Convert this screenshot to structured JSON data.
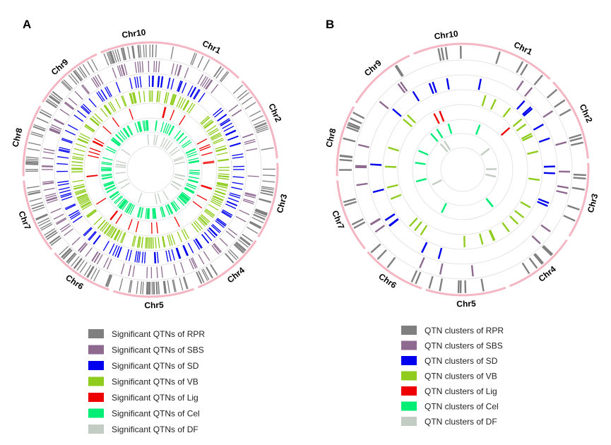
{
  "panels": [
    {
      "label": "A",
      "legend": [
        {
          "text": "Significant QTNs of RPR",
          "color": "#7f7f7f"
        },
        {
          "text": "Significant QTNs of SBS",
          "color": "#8e6a91"
        },
        {
          "text": "Significant QTNs of SD",
          "color": "#0000ee"
        },
        {
          "text": "Significant QTNs of VB",
          "color": "#8fcc1e"
        },
        {
          "text": "Significant QTNs of Lig",
          "color": "#ee0000"
        },
        {
          "text": "Significant QTNs of Cel",
          "color": "#00ee76"
        },
        {
          "text": "Significant QTNs of DF",
          "color": "#c2ccc2"
        }
      ]
    },
    {
      "label": "B",
      "legend": [
        {
          "text": "QTN clusters of RPR",
          "color": "#7f7f7f"
        },
        {
          "text": "QTN clusters of SBS",
          "color": "#8e6a91"
        },
        {
          "text": "QTN clusters of SD",
          "color": "#0000ee"
        },
        {
          "text": "QTN clusters of VB",
          "color": "#8fcc1e"
        },
        {
          "text": "QTN clusters of  Lig",
          "color": "#ee0000"
        },
        {
          "text": "QTN clusters of Cel",
          "color": "#00ee76"
        },
        {
          "text": "QTN clusters of DF",
          "color": "#c2ccc2"
        }
      ]
    }
  ],
  "chromosomes": [
    "Chr1",
    "Chr2",
    "Chr3",
    "Chr4",
    "Chr5",
    "Chr6",
    "Chr7",
    "Chr8",
    "Chr9",
    "Chr10"
  ],
  "colors": {
    "ideogram": "#f4b6c2",
    "track_circle": "#e4e4e4"
  }
}
